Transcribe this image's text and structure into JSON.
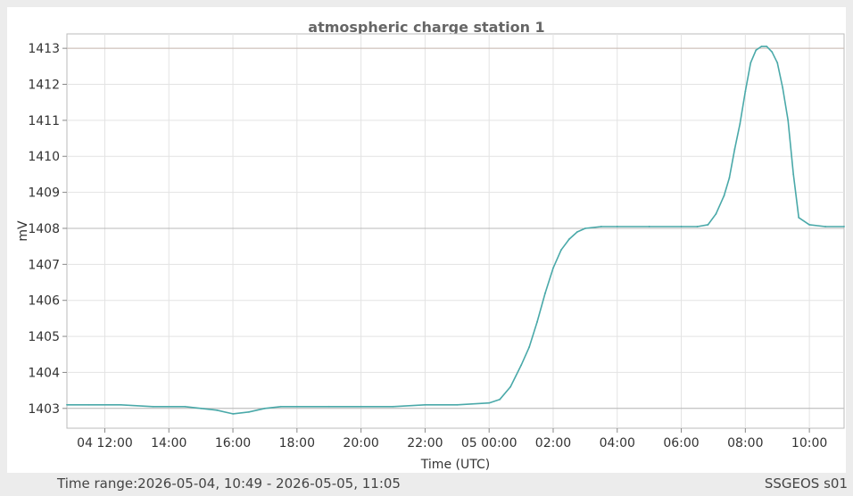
{
  "footer": {
    "time_range_label": "Time range:",
    "time_range_value": "2026-05-04, 10:49 - 2026-05-05, 11:05",
    "source": "SSGEOS s01"
  },
  "chart_data": {
    "type": "line",
    "title": "atmospheric charge station 1",
    "xlabel": "Time (UTC)",
    "ylabel": "mV",
    "x_start": "2026-05-04 10:49",
    "x_end": "2026-05-05 11:05",
    "ylim": [
      1402.45,
      1413.4
    ],
    "y_ticks": [
      1403,
      1404,
      1405,
      1406,
      1407,
      1408,
      1409,
      1410,
      1411,
      1412,
      1413
    ],
    "x_ticks": [
      {
        "t": "2026-05-04 12:00",
        "label": "04 12:00"
      },
      {
        "t": "2026-05-04 14:00",
        "label": "14:00"
      },
      {
        "t": "2026-05-04 16:00",
        "label": "16:00"
      },
      {
        "t": "2026-05-04 18:00",
        "label": "18:00"
      },
      {
        "t": "2026-05-04 20:00",
        "label": "20:00"
      },
      {
        "t": "2026-05-04 22:00",
        "label": "22:00"
      },
      {
        "t": "2026-05-05 00:00",
        "label": "05 00:00"
      },
      {
        "t": "2026-05-05 02:00",
        "label": "02:00"
      },
      {
        "t": "2026-05-05 04:00",
        "label": "04:00"
      },
      {
        "t": "2026-05-05 06:00",
        "label": "06:00"
      },
      {
        "t": "2026-05-05 08:00",
        "label": "08:00"
      },
      {
        "t": "2026-05-05 10:00",
        "label": "10:00"
      }
    ],
    "reference_lines": [
      1403,
      1408,
      1413
    ],
    "grid": true,
    "legend": false,
    "color": "#4aa9a9",
    "series": [
      {
        "x": [
          "2026-05-04 10:49",
          "2026-05-04 11:30",
          "2026-05-04 12:30",
          "2026-05-04 13:30",
          "2026-05-04 14:30",
          "2026-05-04 15:00",
          "2026-05-04 15:30",
          "2026-05-04 16:00",
          "2026-05-04 16:30",
          "2026-05-04 17:00",
          "2026-05-04 17:30",
          "2026-05-04 18:00",
          "2026-05-04 19:00",
          "2026-05-04 20:00",
          "2026-05-04 21:00",
          "2026-05-04 22:00",
          "2026-05-04 23:00",
          "2026-05-05 00:00",
          "2026-05-05 00:20",
          "2026-05-05 00:40",
          "2026-05-05 01:00",
          "2026-05-05 01:15",
          "2026-05-05 01:30",
          "2026-05-05 01:45",
          "2026-05-05 02:00",
          "2026-05-05 02:15",
          "2026-05-05 02:30",
          "2026-05-05 02:45",
          "2026-05-05 03:00",
          "2026-05-05 03:30",
          "2026-05-05 04:00",
          "2026-05-05 05:00",
          "2026-05-05 06:00",
          "2026-05-05 06:30",
          "2026-05-05 06:50",
          "2026-05-05 07:05",
          "2026-05-05 07:20",
          "2026-05-05 07:30",
          "2026-05-05 07:40",
          "2026-05-05 07:50",
          "2026-05-05 08:00",
          "2026-05-05 08:10",
          "2026-05-05 08:20",
          "2026-05-05 08:30",
          "2026-05-05 08:40",
          "2026-05-05 08:50",
          "2026-05-05 09:00",
          "2026-05-05 09:10",
          "2026-05-05 09:20",
          "2026-05-05 09:30",
          "2026-05-05 09:40",
          "2026-05-05 10:00",
          "2026-05-05 10:30",
          "2026-05-05 11:05"
        ],
        "values": [
          1403.1,
          1403.1,
          1403.1,
          1403.05,
          1403.05,
          1403.0,
          1402.95,
          1402.85,
          1402.9,
          1403.0,
          1403.05,
          1403.05,
          1403.05,
          1403.05,
          1403.05,
          1403.1,
          1403.1,
          1403.15,
          1403.25,
          1403.6,
          1404.2,
          1404.7,
          1405.4,
          1406.2,
          1406.9,
          1407.4,
          1407.7,
          1407.9,
          1408.0,
          1408.05,
          1408.05,
          1408.05,
          1408.05,
          1408.05,
          1408.1,
          1408.4,
          1408.9,
          1409.4,
          1410.2,
          1410.9,
          1411.8,
          1412.6,
          1412.95,
          1413.05,
          1413.05,
          1412.9,
          1412.6,
          1411.9,
          1411.0,
          1409.5,
          1408.3,
          1408.1,
          1408.05,
          1408.05
        ]
      }
    ]
  }
}
